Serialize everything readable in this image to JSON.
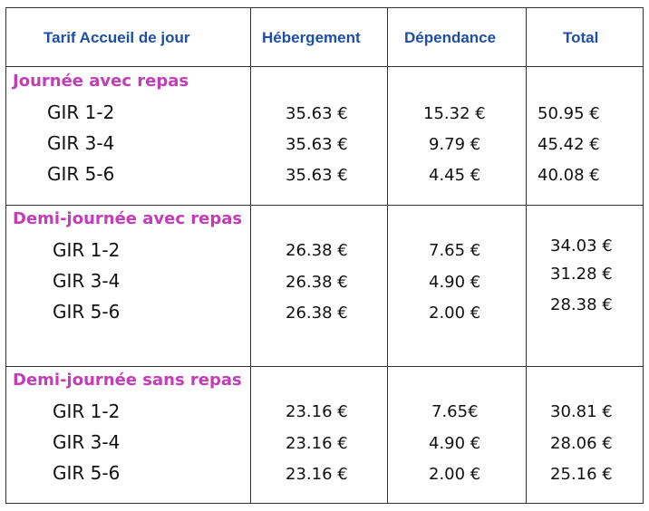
{
  "headers": {
    "tarif": "Tarif Accueil de jour",
    "hebergement": "Hébergement",
    "dependance": "Dépendance",
    "total": "Total"
  },
  "sections": [
    {
      "title": "Journée avec repas",
      "rows": [
        {
          "gir": "GIR 1-2",
          "hebergement": "35.63 €",
          "dependance": "15.32 €",
          "total": "50.95 €"
        },
        {
          "gir": "GIR 3-4",
          "hebergement": "35.63 €",
          "dependance": "9.79 €",
          "total": "45.42 €"
        },
        {
          "gir": "GIR 5-6",
          "hebergement": "35.63 €",
          "dependance": "4.45 €",
          "total": "40.08 €"
        }
      ]
    },
    {
      "title": "Demi-journée avec repas",
      "rows": [
        {
          "gir": "GIR 1-2",
          "hebergement": "26.38 €",
          "dependance": "7.65 €",
          "total": "34.03 €"
        },
        {
          "gir": "GIR 3-4",
          "hebergement": "26.38 €",
          "dependance": "4.90 €",
          "total": "31.28 €"
        },
        {
          "gir": "GIR 5-6",
          "hebergement": "26.38 €",
          "dependance": "2.00 €",
          "total": "28.38 €"
        }
      ]
    },
    {
      "title": "Demi-journée sans repas",
      "rows": [
        {
          "gir": "GIR 1-2",
          "hebergement": "23.16 €",
          "dependance": "7.65€",
          "total": "30.81 €"
        },
        {
          "gir": "GIR 3-4",
          "hebergement": "23.16 €",
          "dependance": "4.90 €",
          "total": "28.06 €"
        },
        {
          "gir": "GIR 5-6",
          "hebergement": "23.16 €",
          "dependance": "2.00 €",
          "total": "25.16 €"
        }
      ]
    }
  ]
}
